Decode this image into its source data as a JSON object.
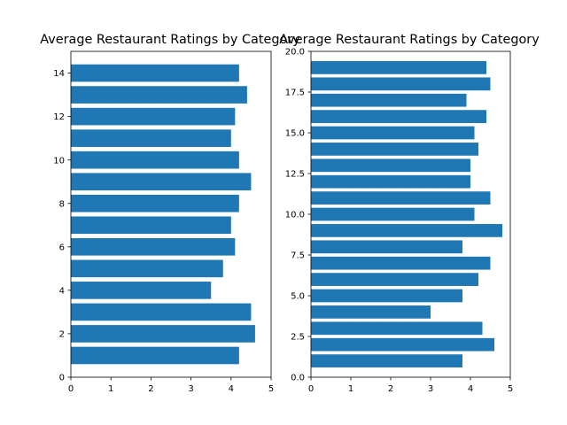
{
  "chart_data": [
    {
      "type": "bar",
      "orientation": "horizontal",
      "title": "Average Restaurant Ratings by Category",
      "xlabel": "",
      "ylabel": "",
      "y": [
        1,
        2,
        3,
        4,
        5,
        6,
        7,
        8,
        9,
        10,
        11,
        12,
        13,
        14
      ],
      "values": [
        4.2,
        4.6,
        4.5,
        3.5,
        3.8,
        4.1,
        4.0,
        4.2,
        4.5,
        4.2,
        4.0,
        4.1,
        4.4,
        4.2
      ],
      "xlim": [
        0,
        5
      ],
      "ylim": [
        0,
        15
      ],
      "xticks": [
        "0",
        "1",
        "2",
        "3",
        "4",
        "5"
      ],
      "yticks": [
        {
          "v": 0,
          "label": "0"
        },
        {
          "v": 2,
          "label": "2"
        },
        {
          "v": 4,
          "label": "4"
        },
        {
          "v": 6,
          "label": "6"
        },
        {
          "v": 8,
          "label": "8"
        },
        {
          "v": 10,
          "label": "10"
        },
        {
          "v": 12,
          "label": "12"
        },
        {
          "v": 14,
          "label": "14"
        }
      ],
      "color": "#1f77b4",
      "grid": false
    },
    {
      "type": "bar",
      "orientation": "horizontal",
      "title": "Average Restaurant Ratings by Category",
      "xlabel": "",
      "ylabel": "",
      "y": [
        1,
        2,
        3,
        4,
        5,
        6,
        7,
        8,
        9,
        10,
        11,
        12,
        13,
        14,
        15,
        16,
        17,
        18,
        19
      ],
      "values": [
        3.8,
        4.6,
        4.3,
        3.0,
        3.8,
        4.2,
        4.5,
        3.8,
        4.8,
        4.1,
        4.5,
        4.0,
        4.0,
        4.2,
        4.1,
        4.4,
        3.9,
        4.5,
        4.4
      ],
      "xlim": [
        0,
        5
      ],
      "ylim": [
        0,
        20
      ],
      "xticks": [
        "0",
        "1",
        "2",
        "3",
        "4",
        "5"
      ],
      "yticks": [
        {
          "v": 0,
          "label": "0.0"
        },
        {
          "v": 2.5,
          "label": "2.5"
        },
        {
          "v": 5,
          "label": "5.0"
        },
        {
          "v": 7.5,
          "label": "7.5"
        },
        {
          "v": 10,
          "label": "10.0"
        },
        {
          "v": 12.5,
          "label": "12.5"
        },
        {
          "v": 15,
          "label": "15.0"
        },
        {
          "v": 17.5,
          "label": "17.5"
        },
        {
          "v": 20,
          "label": "20.0"
        }
      ],
      "color": "#1f77b4",
      "grid": false
    }
  ]
}
